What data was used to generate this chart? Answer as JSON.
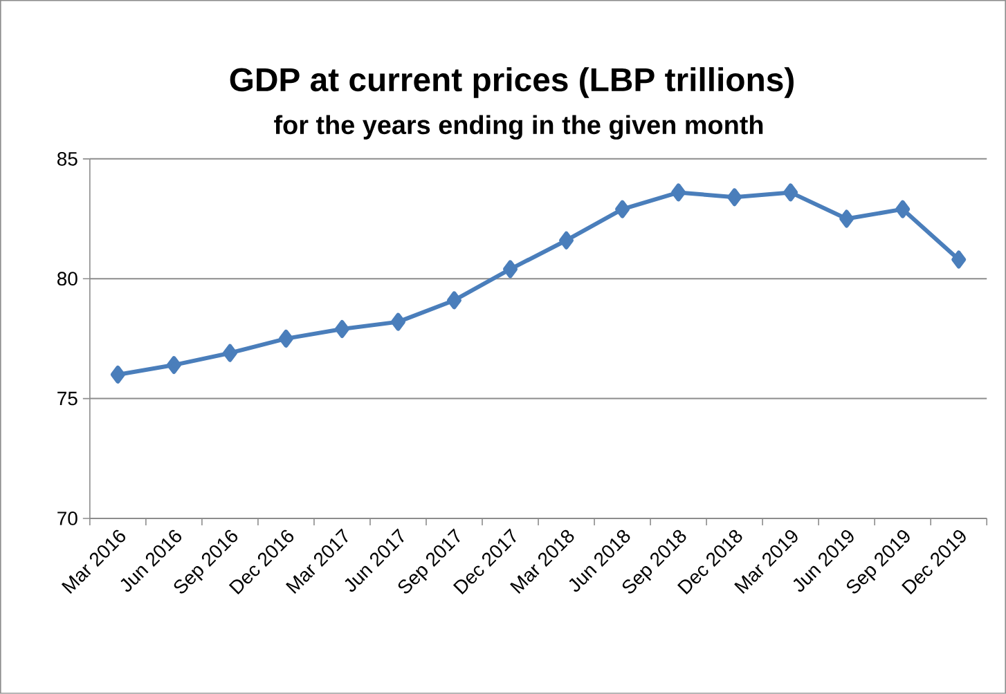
{
  "chart_data": {
    "type": "line",
    "title": "GDP at current prices **(LBP trillions)**",
    "subtitle": "for the years ending in the given month",
    "categories": [
      "Mar 2016",
      "Jun 2016",
      "Sep 2016",
      "Dec 2016",
      "Mar 2017",
      "Jun 2017",
      "Sep 2017",
      "Dec 2017",
      "Mar 2018",
      "Jun 2018",
      "Sep 2018",
      "Dec 2018",
      "Mar 2019",
      "Jun 2019",
      "Sep 2019",
      "Dec 2019"
    ],
    "series": [
      {
        "color": "#4a7ebb",
        "values": [
          76.0,
          76.4,
          76.9,
          77.5,
          77.9,
          78.2,
          79.1,
          80.4,
          81.6,
          82.9,
          83.6,
          83.4,
          83.6,
          82.5,
          82.9,
          80.8
        ]
      }
    ],
    "ylim": [
      70,
      85
    ],
    "yticks": [
      70,
      75,
      80,
      85
    ],
    "grid": "y",
    "marker": "diamond",
    "line_style": "solid"
  }
}
